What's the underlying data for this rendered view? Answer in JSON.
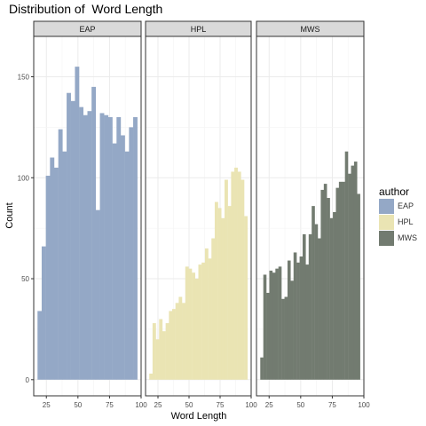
{
  "chart_data": {
    "type": "bar",
    "title": "Distribution of  Word Length",
    "xlabel": "Word Length",
    "ylabel": "Count",
    "xlim": [
      15,
      100
    ],
    "ylim": [
      -8,
      170
    ],
    "x_ticks": [
      25,
      50,
      75,
      100
    ],
    "y_ticks": [
      0,
      50,
      100,
      150
    ],
    "grid": true,
    "legend_title": "author",
    "legend_position": "right",
    "panels": [
      {
        "name": "EAP",
        "color": "#94A8C6",
        "values": [
          34,
          66,
          101,
          110,
          105,
          124,
          113,
          142,
          138,
          155,
          135,
          131,
          133,
          145,
          84,
          132,
          131,
          130,
          117,
          130,
          121,
          113,
          125,
          130
        ]
      },
      {
        "name": "HPL",
        "color": "#EAE4B3",
        "values": [
          3,
          28,
          20,
          30,
          24,
          28,
          34,
          35,
          38,
          41,
          38,
          56,
          55,
          53,
          50,
          57,
          58,
          65,
          60,
          70,
          88,
          85,
          80,
          99,
          86,
          103,
          105,
          103,
          99,
          81
        ]
      },
      {
        "name": "MWS",
        "color": "#727B70",
        "values": [
          11,
          52,
          43,
          54,
          53,
          55,
          56,
          40,
          41,
          59,
          49,
          63,
          58,
          61,
          72,
          57,
          72,
          86,
          77,
          70,
          94,
          97,
          90,
          80,
          83,
          95,
          98,
          98,
          113,
          102,
          106,
          108,
          92
        ]
      }
    ]
  }
}
